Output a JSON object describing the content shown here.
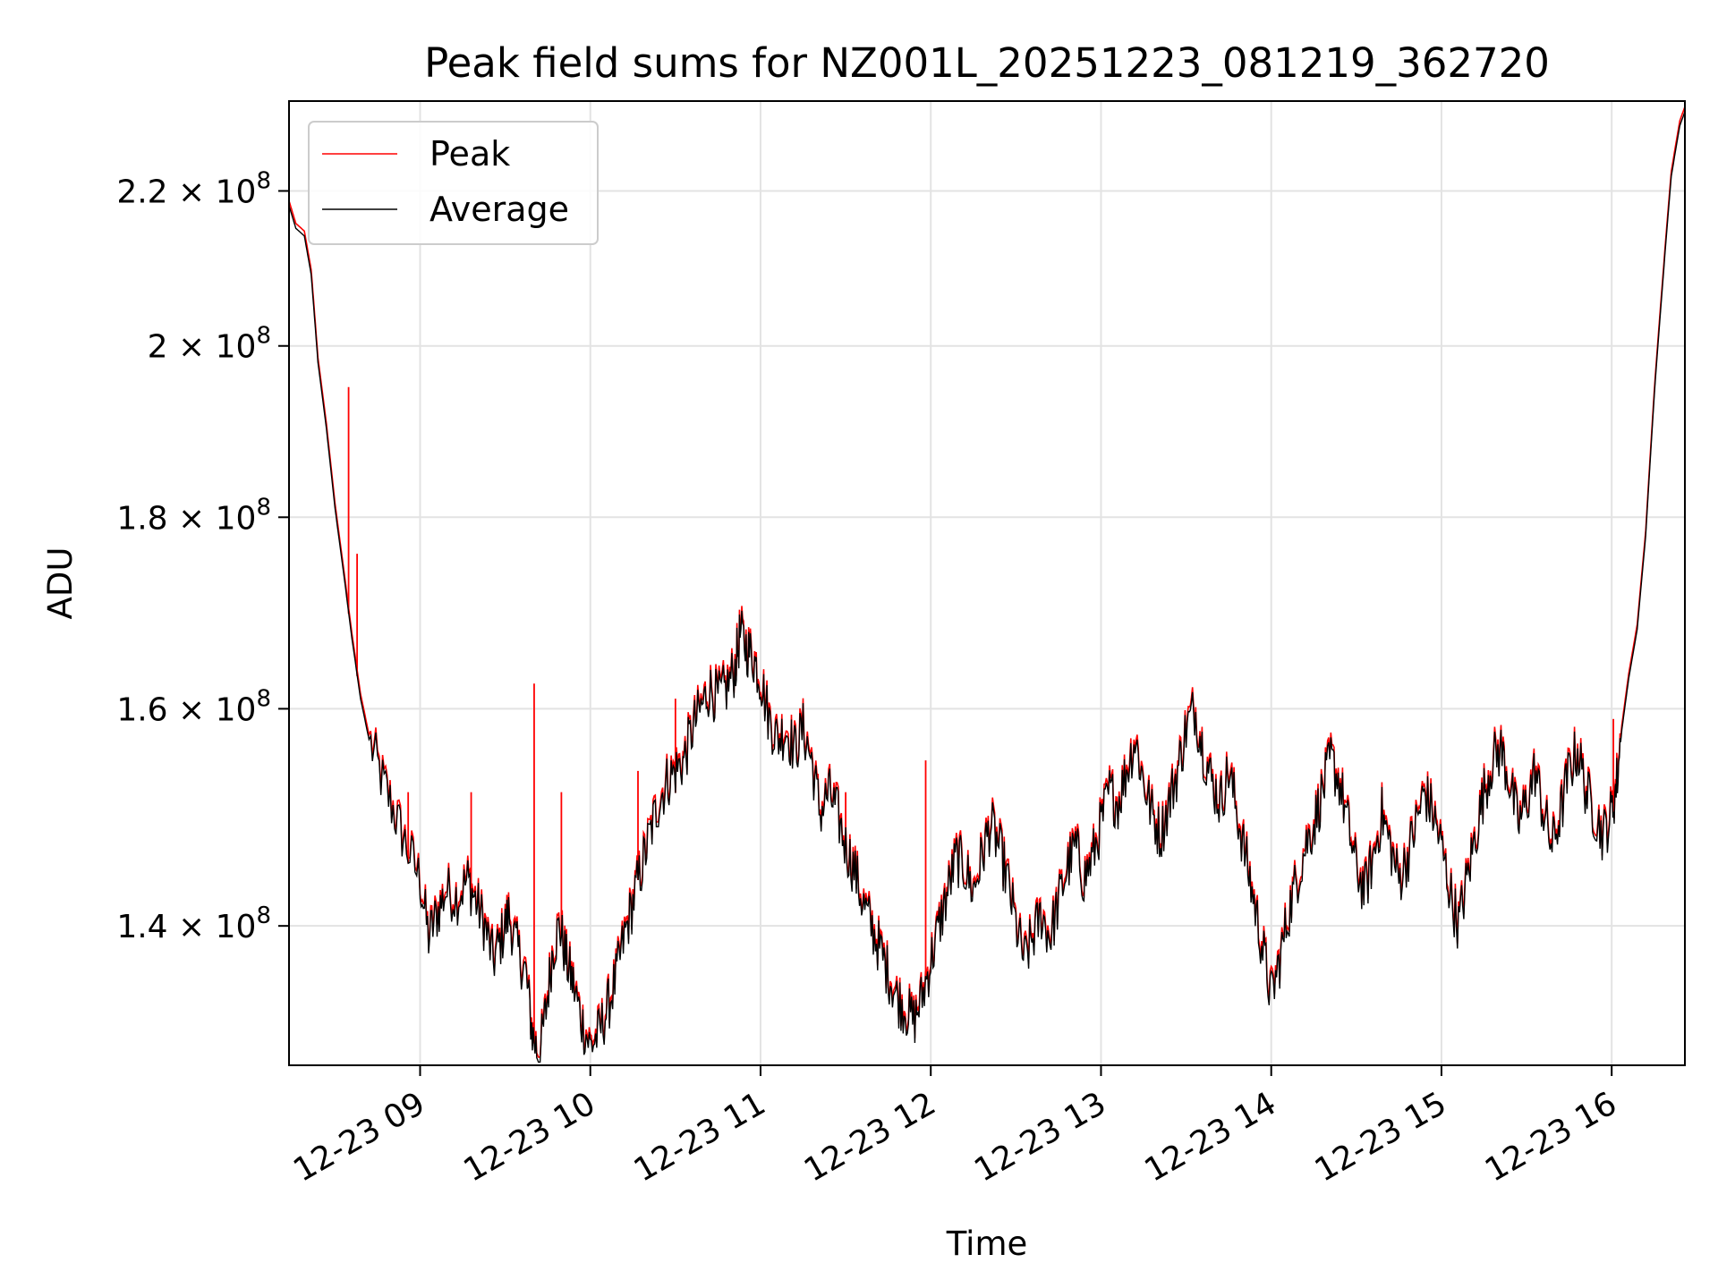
{
  "chart_data": {
    "type": "line",
    "title": "Peak field sums for NZ001L_20251223_081219_362720",
    "xlabel": "Time",
    "ylabel": "ADU",
    "y_scale": "log",
    "grid": true,
    "legend_position": "top-left",
    "xlim_hours": [
      8.23,
      16.43
    ],
    "ylim": [
      128500000,
      232500000
    ],
    "x_ticks": [
      {
        "value": 9,
        "label": "12-23 09"
      },
      {
        "value": 10,
        "label": "12-23 10"
      },
      {
        "value": 11,
        "label": "12-23 11"
      },
      {
        "value": 12,
        "label": "12-23 12"
      },
      {
        "value": 13,
        "label": "12-23 13"
      },
      {
        "value": 14,
        "label": "12-23 14"
      },
      {
        "value": 15,
        "label": "12-23 15"
      },
      {
        "value": 16,
        "label": "12-23 16"
      }
    ],
    "y_ticks": [
      {
        "value": 140000000,
        "mantissa": "1.4",
        "base": "10",
        "exp": "8"
      },
      {
        "value": 160000000,
        "mantissa": "1.6",
        "base": "10",
        "exp": "8"
      },
      {
        "value": 180000000,
        "mantissa": "1.8",
        "base": "10",
        "exp": "8"
      },
      {
        "value": 200000000,
        "mantissa": "2",
        "base": "10",
        "exp": "8"
      },
      {
        "value": 220000000,
        "mantissa": "2.2",
        "base": "10",
        "exp": "8"
      }
    ],
    "series": [
      {
        "name": "Peak",
        "color": "#ff0000",
        "spikes": [
          {
            "x": 8.58,
            "y": 195000000
          },
          {
            "x": 8.63,
            "y": 176000000
          },
          {
            "x": 8.93,
            "y": 152000000
          },
          {
            "x": 9.3,
            "y": 152000000
          },
          {
            "x": 9.67,
            "y": 162500000
          },
          {
            "x": 9.83,
            "y": 152000000
          },
          {
            "x": 10.28,
            "y": 154000000
          },
          {
            "x": 10.5,
            "y": 161000000
          },
          {
            "x": 11.5,
            "y": 152000000
          },
          {
            "x": 11.97,
            "y": 155000000
          },
          {
            "x": 16.01,
            "y": 159000000
          }
        ]
      },
      {
        "name": "Average",
        "color": "#000000",
        "points": [
          [
            8.23,
            218000000
          ],
          [
            8.27,
            215000000
          ],
          [
            8.32,
            214000000
          ],
          [
            8.36,
            209000000
          ],
          [
            8.4,
            198000000
          ],
          [
            8.45,
            190000000
          ],
          [
            8.5,
            181000000
          ],
          [
            8.55,
            174000000
          ],
          [
            8.6,
            167000000
          ],
          [
            8.65,
            161000000
          ],
          [
            8.7,
            157000000
          ],
          [
            8.78,
            153000000
          ],
          [
            8.85,
            150000000
          ],
          [
            8.92,
            147000000
          ],
          [
            9.0,
            144000000
          ],
          [
            9.05,
            139000000
          ],
          [
            9.1,
            141000000
          ],
          [
            9.15,
            143000000
          ],
          [
            9.22,
            142500000
          ],
          [
            9.28,
            144000000
          ],
          [
            9.33,
            142000000
          ],
          [
            9.38,
            140000000
          ],
          [
            9.43,
            137000000
          ],
          [
            9.48,
            139000000
          ],
          [
            9.52,
            141000000
          ],
          [
            9.57,
            138000000
          ],
          [
            9.62,
            136000000
          ],
          [
            9.66,
            131000000
          ],
          [
            9.7,
            129000000
          ],
          [
            9.74,
            133000000
          ],
          [
            9.78,
            138000000
          ],
          [
            9.82,
            140000000
          ],
          [
            9.86,
            137000000
          ],
          [
            9.9,
            135000000
          ],
          [
            9.95,
            132000000
          ],
          [
            10.0,
            130000000
          ],
          [
            10.05,
            131000000
          ],
          [
            10.1,
            133000000
          ],
          [
            10.15,
            135500000
          ],
          [
            10.2,
            139000000
          ],
          [
            10.25,
            142000000
          ],
          [
            10.3,
            145000000
          ],
          [
            10.35,
            148000000
          ],
          [
            10.4,
            151000000
          ],
          [
            10.45,
            153000000
          ],
          [
            10.5,
            154000000
          ],
          [
            10.55,
            155000000
          ],
          [
            10.6,
            158000000
          ],
          [
            10.65,
            160000000
          ],
          [
            10.7,
            162000000
          ],
          [
            10.75,
            161000000
          ],
          [
            10.8,
            162000000
          ],
          [
            10.85,
            164000000
          ],
          [
            10.88,
            167500000
          ],
          [
            10.92,
            166000000
          ],
          [
            10.96,
            165000000
          ],
          [
            11.0,
            163000000
          ],
          [
            11.05,
            159000000
          ],
          [
            11.1,
            157000000
          ],
          [
            11.15,
            158000000
          ],
          [
            11.2,
            156000000
          ],
          [
            11.25,
            158000000
          ],
          [
            11.3,
            155000000
          ],
          [
            11.35,
            150000000
          ],
          [
            11.4,
            152000000
          ],
          [
            11.45,
            150000000
          ],
          [
            11.5,
            147000000
          ],
          [
            11.55,
            145000000
          ],
          [
            11.6,
            142000000
          ],
          [
            11.65,
            140000000
          ],
          [
            11.7,
            138000000
          ],
          [
            11.75,
            136000000
          ],
          [
            11.8,
            134000000
          ],
          [
            11.85,
            133000000
          ],
          [
            11.9,
            132000000
          ],
          [
            11.95,
            134000000
          ],
          [
            12.0,
            137000000
          ],
          [
            12.05,
            140000000
          ],
          [
            12.1,
            143000000
          ],
          [
            12.15,
            146000000
          ],
          [
            12.2,
            145000000
          ],
          [
            12.25,
            143000000
          ],
          [
            12.3,
            146000000
          ],
          [
            12.35,
            149000000
          ],
          [
            12.4,
            147000000
          ],
          [
            12.45,
            144000000
          ],
          [
            12.5,
            140000000
          ],
          [
            12.55,
            137000000
          ],
          [
            12.6,
            139000000
          ],
          [
            12.65,
            141000000
          ],
          [
            12.7,
            139000000
          ],
          [
            12.75,
            142000000
          ],
          [
            12.8,
            145000000
          ],
          [
            12.85,
            147000000
          ],
          [
            12.9,
            144000000
          ],
          [
            12.95,
            146000000
          ],
          [
            13.0,
            149000000
          ],
          [
            13.05,
            152000000
          ],
          [
            13.1,
            151000000
          ],
          [
            13.15,
            154000000
          ],
          [
            13.2,
            157000000
          ],
          [
            13.25,
            153000000
          ],
          [
            13.3,
            150000000
          ],
          [
            13.35,
            148000000
          ],
          [
            13.4,
            151000000
          ],
          [
            13.45,
            154000000
          ],
          [
            13.5,
            158000000
          ],
          [
            13.55,
            160000000
          ],
          [
            13.6,
            156000000
          ],
          [
            13.65,
            153000000
          ],
          [
            13.7,
            151000000
          ],
          [
            13.75,
            154000000
          ],
          [
            13.8,
            150000000
          ],
          [
            13.85,
            146000000
          ],
          [
            13.9,
            142000000
          ],
          [
            13.95,
            138000000
          ],
          [
            14.0,
            134000000
          ],
          [
            14.05,
            137000000
          ],
          [
            14.1,
            141000000
          ],
          [
            14.15,
            144000000
          ],
          [
            14.2,
            147000000
          ],
          [
            14.25,
            149000000
          ],
          [
            14.3,
            152000000
          ],
          [
            14.35,
            155000000
          ],
          [
            14.4,
            153000000
          ],
          [
            14.45,
            149000000
          ],
          [
            14.5,
            145000000
          ],
          [
            14.55,
            143000000
          ],
          [
            14.6,
            146000000
          ],
          [
            14.65,
            150000000
          ],
          [
            14.7,
            147000000
          ],
          [
            14.75,
            144000000
          ],
          [
            14.8,
            146000000
          ],
          [
            14.85,
            149000000
          ],
          [
            14.9,
            152000000
          ],
          [
            14.95,
            150000000
          ],
          [
            15.0,
            147000000
          ],
          [
            15.05,
            143000000
          ],
          [
            15.1,
            140000000
          ],
          [
            15.15,
            144000000
          ],
          [
            15.2,
            148000000
          ],
          [
            15.25,
            152000000
          ],
          [
            15.3,
            155000000
          ],
          [
            15.35,
            156000000
          ],
          [
            15.4,
            153000000
          ],
          [
            15.45,
            149000000
          ],
          [
            15.5,
            151000000
          ],
          [
            15.55,
            154000000
          ],
          [
            15.6,
            150000000
          ],
          [
            15.65,
            147000000
          ],
          [
            15.7,
            150000000
          ],
          [
            15.75,
            154000000
          ],
          [
            15.8,
            156000000
          ],
          [
            15.85,
            152000000
          ],
          [
            15.9,
            150000000
          ],
          [
            15.95,
            148000000
          ],
          [
            16.0,
            150000000
          ],
          [
            16.03,
            153000000
          ],
          [
            16.06,
            158000000
          ],
          [
            16.1,
            163000000
          ],
          [
            16.15,
            168000000
          ],
          [
            16.2,
            178000000
          ],
          [
            16.25,
            194000000
          ],
          [
            16.3,
            208000000
          ],
          [
            16.35,
            222000000
          ],
          [
            16.4,
            229000000
          ],
          [
            16.43,
            231000000
          ]
        ]
      }
    ]
  }
}
